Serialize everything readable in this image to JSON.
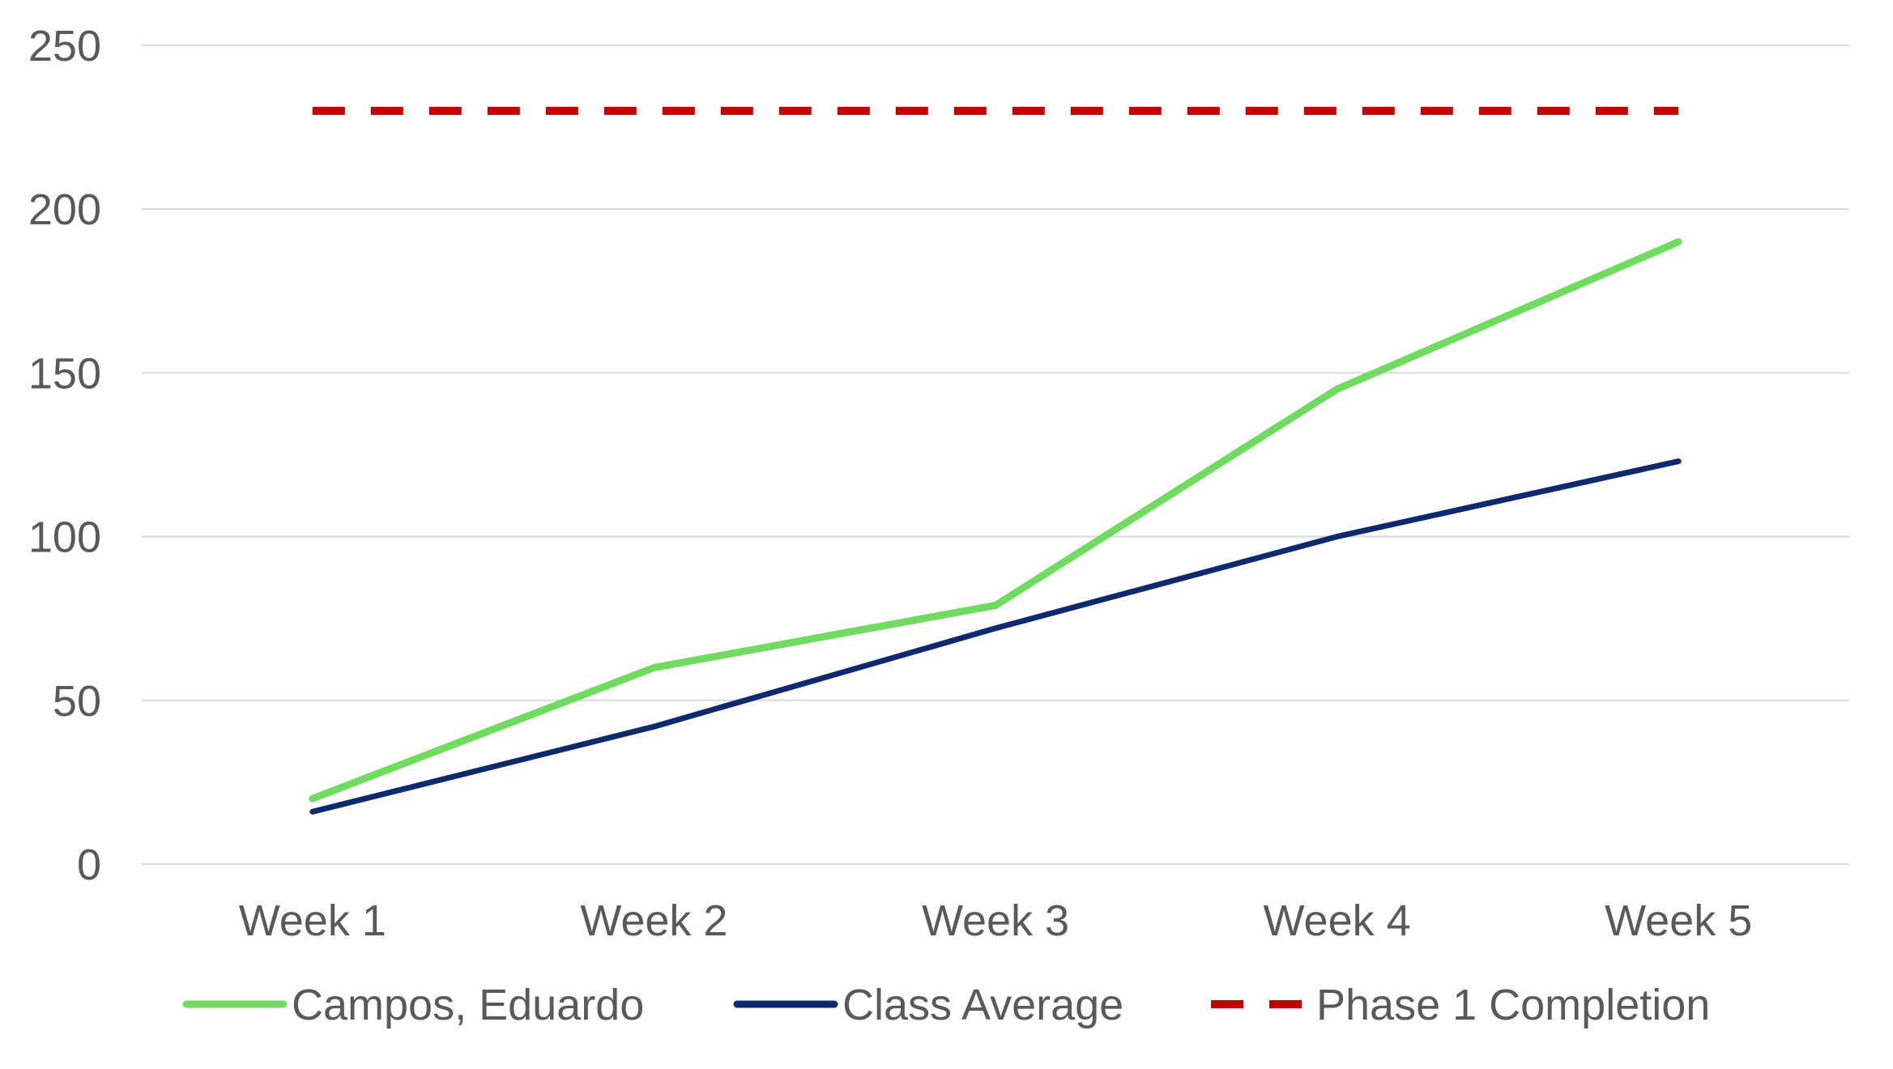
{
  "chart_data": {
    "type": "line",
    "title": "",
    "xlabel": "",
    "ylabel": "",
    "categories": [
      "Week 1",
      "Week 2",
      "Week 3",
      "Week 4",
      "Week 5"
    ],
    "ylim": [
      0,
      250
    ],
    "yticks": [
      0,
      50,
      100,
      150,
      200,
      250
    ],
    "grid": true,
    "legend_position": "bottom",
    "series": [
      {
        "name": "Campos, Eduardo",
        "values": [
          20,
          60,
          79,
          145,
          190
        ],
        "color": "#6FDC5F",
        "style": "solid"
      },
      {
        "name": "Class Average",
        "values": [
          16,
          42,
          72,
          100,
          123
        ],
        "color": "#0E2A6E",
        "style": "solid"
      },
      {
        "name": "Phase 1 Completion",
        "values": [
          230,
          230,
          230,
          230,
          230
        ],
        "color": "#C00000",
        "style": "dashed"
      }
    ]
  }
}
